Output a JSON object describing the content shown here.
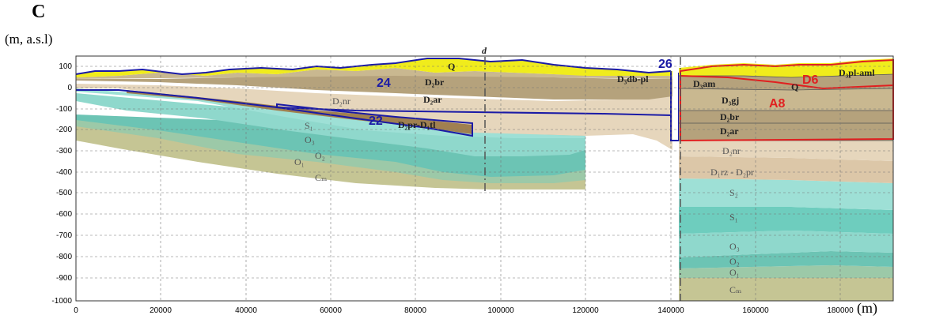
{
  "panel_letter": "C",
  "y_unit": "(m, a.s.l)",
  "x_unit": "(m)",
  "marker_d": "d",
  "y_ticks": [
    "100",
    "0",
    "-100",
    "-200",
    "-300",
    "-400",
    "-500",
    "-600",
    "-700",
    "-800",
    "-900",
    "-1000"
  ],
  "x_ticks": [
    "0",
    "20000",
    "40000",
    "60000",
    "80000",
    "100000",
    "120000",
    "140000",
    "160000",
    "180000"
  ],
  "zones": {
    "z24": "24",
    "z22": "22",
    "z26": "26",
    "zD6": "D6",
    "zA8": "A8"
  },
  "layers": {
    "q_left": "Q",
    "d2br_left": "D₂br",
    "d3dbpl": "D₃db-pl",
    "d2ar_left": "D₂ar",
    "d2nr_left": "D₂nr",
    "d2pr_d1tl": "D₂pr-D₁tl",
    "s1_left": "S₁",
    "o3_left": "O₃",
    "o2_left": "O₂",
    "o1_left": "O₁",
    "cm_left": "Cₘ",
    "q_right": "Q",
    "d3plaml": "D₃pl-aml",
    "d3am": "D₃am",
    "d3gj": "D₃gj",
    "d2br_right": "D₂br",
    "d2ar_right": "D₂ar",
    "d2nr_right": "D₂nr",
    "d1rz_d2pr": "D₁rz - D₂pr",
    "s2_right": "S₂",
    "s1_right": "S₁",
    "o3_right": "O₃",
    "o2_right": "O₂",
    "o1_right": "O₁",
    "cm_right": "Cₘ"
  },
  "colors": {
    "quaternary": "#f0ec1c",
    "devonian_upper": "#c9b890",
    "devonian_mid": "#b5a27c",
    "devonian_pr": "#a08050",
    "devonian_nr": "#e6d6bc",
    "devonian_rz": "#dcc7a8",
    "silurian": "#8fd8cc",
    "ordovician": "#6cc4b4",
    "cambrian": "#c5c594",
    "zone_blue": "#1a1aa6",
    "zone_red": "#e02020"
  }
}
